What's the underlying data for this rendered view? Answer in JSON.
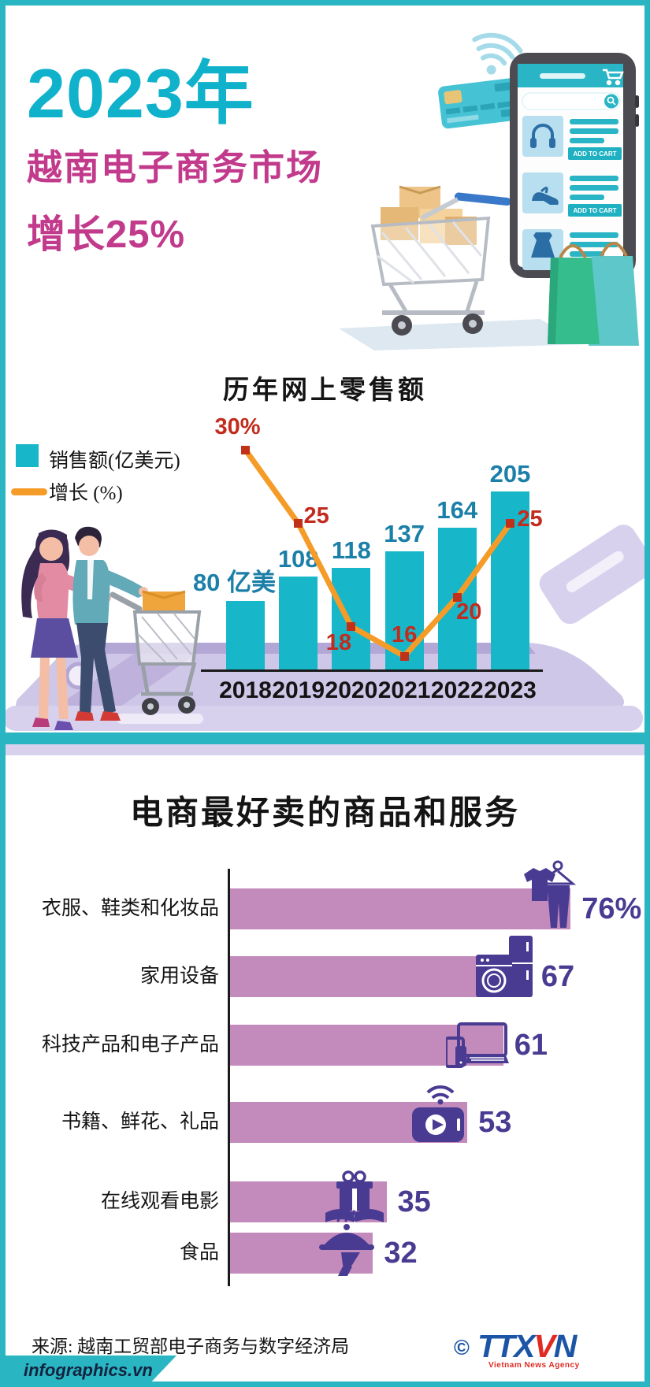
{
  "header": {
    "year_title": "2023年",
    "market_line": "越南电子商务市场",
    "growth_line": "增长25%",
    "title_color": "#10b1cb",
    "subtitle_color": "#c23a8c"
  },
  "hero": {
    "add_to_cart": "ADD TO CART"
  },
  "chart_data": [
    {
      "type": "bar+line",
      "title": "历年网上零售额",
      "categories": [
        "2018",
        "2019",
        "2020",
        "2021",
        "2022",
        "2023"
      ],
      "series": [
        {
          "name": "销售额(亿美元)",
          "chart": "bar",
          "values": [
            80,
            108,
            118,
            137,
            164,
            205
          ],
          "value_labels": [
            "80 亿美",
            "108",
            "118",
            "137",
            "164",
            "205"
          ],
          "color": "#17b6c9",
          "label_color": "#1b7fa8"
        },
        {
          "name": "增长 (%)",
          "chart": "line",
          "values": [
            30,
            25,
            18,
            16,
            20,
            25
          ],
          "value_labels": [
            "30%",
            "25",
            "18",
            "16",
            "20",
            "25"
          ],
          "color": "#f59c28",
          "marker_color": "#c13018",
          "label_color": "#c22b1d"
        }
      ],
      "legend_position": "upper-left",
      "grid": false
    },
    {
      "type": "bar",
      "orientation": "horizontal",
      "title": "电商最好卖的商品和服务",
      "categories": [
        "衣服、鞋类和化妆品",
        "家用设备",
        "科技产品和电子产品",
        "书籍、鲜花、礼品",
        "在线观看电影",
        "食品"
      ],
      "values": [
        76,
        67,
        61,
        53,
        35,
        32
      ],
      "value_labels": [
        "76%",
        "67",
        "61",
        "53",
        "35",
        "32"
      ],
      "xlim": [
        0,
        80
      ],
      "bar_color": "#c38abc",
      "value_color": "#4a3b92",
      "icons": [
        "clothing-hanger-icon",
        "home-appliances-icon",
        "electronics-devices-icon",
        "media-player-icon",
        "gift-book-icon",
        "food-tray-icon"
      ]
    }
  ],
  "footer": {
    "source": "来源: 越南工贸部电子商务与数字经济局",
    "site": "infographics.vn",
    "copyright": "©",
    "agency_name_blue1": "TTX",
    "agency_name_red": "V",
    "agency_name_blue2": "N",
    "agency_tagline": "Vietnam News Agency"
  }
}
